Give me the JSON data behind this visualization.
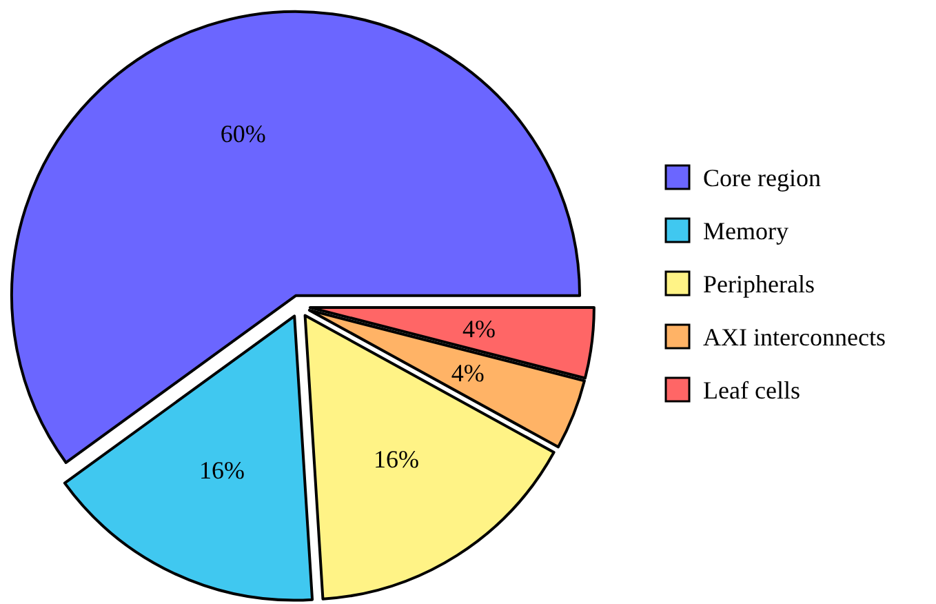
{
  "chart_data": {
    "type": "pie",
    "categories": [
      "Core region",
      "Memory",
      "Peripherals",
      "AXI interconnects",
      "Leaf cells"
    ],
    "values": [
      60,
      16,
      16,
      4,
      4
    ],
    "colors": [
      "#6b66ff",
      "#40c8f0",
      "#fff386",
      "#ffb366",
      "#ff6666"
    ],
    "value_labels": [
      "60%",
      "16%",
      "16%",
      "4%",
      "4%"
    ],
    "legend": "right"
  }
}
